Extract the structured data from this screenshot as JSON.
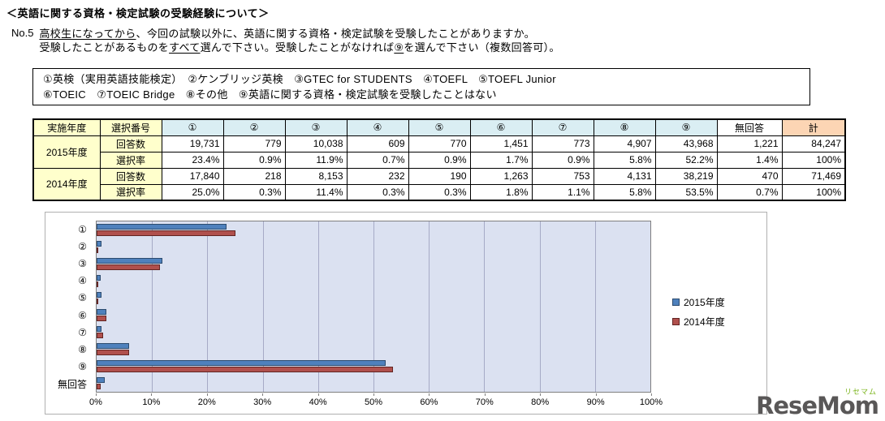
{
  "page_title": "＜英語に関する資格・検定試験の受験経験について＞",
  "question": {
    "no": "No.5",
    "line1": [
      {
        "t": "高校生になってから",
        "u": true
      },
      {
        "t": "、今回の試験以外に、英語に関する資格・検定試験を受験したことがありますか。",
        "u": false
      }
    ],
    "line2": [
      {
        "t": "受験したことがあるものを",
        "u": false
      },
      {
        "t": "すべて",
        "u": true
      },
      {
        "t": "選んで下さい。受験したことがなければ",
        "u": false
      },
      {
        "t": "⑨",
        "u": true
      },
      {
        "t": "を選んで下さい（複数回答可）。",
        "u": false
      }
    ]
  },
  "options_box": {
    "line1": "①英検（実用英語技能検定）　②ケンブリッジ英検　③GTEC for STUDENTS　④TOEFL　⑤TOEFL Junior",
    "line2": "⑥TOEIC　⑦TOEIC Bridge　⑧その他　⑨英語に関する資格・検定試験を受験したことはない"
  },
  "table": {
    "header": [
      "実施年度",
      "選択番号",
      "①",
      "②",
      "③",
      "④",
      "⑤",
      "⑥",
      "⑦",
      "⑧",
      "⑨",
      "無回答",
      "計"
    ],
    "rows": [
      {
        "year": "2015年度",
        "label": "回答数",
        "values": [
          "19,731",
          "779",
          "10,038",
          "609",
          "770",
          "1,451",
          "773",
          "4,907",
          "43,968",
          "1,221",
          "84,247"
        ]
      },
      {
        "year": "",
        "label": "選択率",
        "values": [
          "23.4%",
          "0.9%",
          "11.9%",
          "0.7%",
          "0.9%",
          "1.7%",
          "0.9%",
          "5.8%",
          "52.2%",
          "1.4%",
          "100%"
        ]
      },
      {
        "year": "2014年度",
        "label": "回答数",
        "values": [
          "17,840",
          "218",
          "8,153",
          "232",
          "190",
          "1,263",
          "753",
          "4,131",
          "38,219",
          "470",
          "71,469"
        ]
      },
      {
        "year": "",
        "label": "選択率",
        "values": [
          "25.0%",
          "0.3%",
          "11.4%",
          "0.3%",
          "0.3%",
          "1.8%",
          "1.1%",
          "5.8%",
          "53.5%",
          "0.7%",
          "100%"
        ]
      }
    ]
  },
  "chart_data": {
    "type": "bar",
    "orientation": "horizontal",
    "categories": [
      "①",
      "②",
      "③",
      "④",
      "⑤",
      "⑥",
      "⑦",
      "⑧",
      "⑨",
      "無回答"
    ],
    "series": [
      {
        "name": "2015年度",
        "color": "#4f81bd",
        "border": "#2c4b6e",
        "values": [
          23.4,
          0.9,
          11.9,
          0.7,
          0.9,
          1.7,
          0.9,
          5.8,
          52.2,
          1.4
        ]
      },
      {
        "name": "2014年度",
        "color": "#b0504d",
        "border": "#632523",
        "values": [
          25.0,
          0.3,
          11.4,
          0.3,
          0.3,
          1.8,
          1.1,
          5.8,
          53.5,
          0.7
        ]
      }
    ],
    "x_ticks": [
      "0%",
      "10%",
      "20%",
      "30%",
      "40%",
      "50%",
      "60%",
      "70%",
      "80%",
      "90%",
      "100%"
    ],
    "xlim": [
      0,
      100
    ],
    "grid": true,
    "legend_position": "right",
    "plot_bg": "#dbe1f1"
  },
  "logo": {
    "text": "ReseMom",
    "ruby": "リセマム"
  }
}
